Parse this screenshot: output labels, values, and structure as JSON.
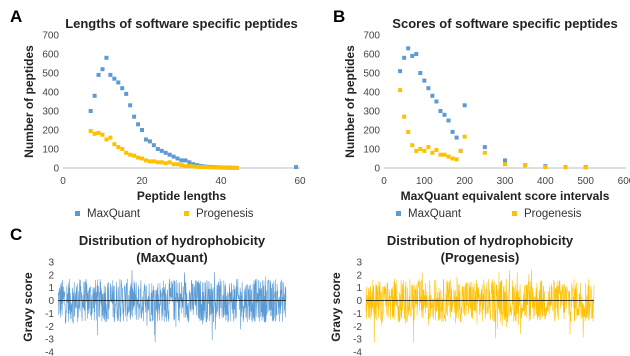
{
  "panels": {
    "A": "A",
    "B": "B",
    "C": "C"
  },
  "colors": {
    "maxquant": "#5b9bd5",
    "progenesis": "#ffc000",
    "axis": "#bfbfbf",
    "zero_line": "#222222"
  },
  "chart_data": [
    {
      "type": "scatter",
      "title": "Lengths of software specific peptides",
      "xlabel": "Peptide lengths",
      "ylabel": "Number of peptides",
      "xlim": [
        0,
        60
      ],
      "ylim": [
        0,
        700
      ],
      "xticks": [
        0,
        20,
        40,
        60
      ],
      "yticks": [
        0,
        100,
        200,
        300,
        400,
        500,
        600,
        700
      ],
      "legend": "bottom",
      "series": [
        {
          "name": "MaxQuant",
          "x": [
            7,
            8,
            9,
            10,
            11,
            12,
            13,
            14,
            15,
            16,
            17,
            18,
            19,
            20,
            21,
            22,
            23,
            24,
            25,
            26,
            27,
            28,
            29,
            30,
            31,
            32,
            33,
            34,
            35,
            36,
            37,
            38,
            39,
            40,
            41,
            42,
            43,
            44,
            59
          ],
          "y": [
            300,
            380,
            490,
            520,
            580,
            490,
            470,
            450,
            420,
            390,
            330,
            270,
            230,
            200,
            150,
            140,
            120,
            100,
            90,
            80,
            70,
            60,
            50,
            40,
            40,
            30,
            20,
            15,
            10,
            8,
            6,
            5,
            4,
            3,
            2,
            2,
            1,
            1,
            5
          ]
        },
        {
          "name": "Progenesis",
          "x": [
            7,
            8,
            9,
            10,
            11,
            12,
            13,
            14,
            15,
            16,
            17,
            18,
            19,
            20,
            21,
            22,
            23,
            24,
            25,
            26,
            27,
            28,
            29,
            30,
            31,
            32,
            33,
            34,
            35,
            36,
            37,
            38,
            39,
            40,
            41,
            42,
            43,
            44
          ],
          "y": [
            195,
            180,
            185,
            175,
            150,
            160,
            125,
            110,
            100,
            80,
            70,
            65,
            55,
            50,
            40,
            35,
            35,
            30,
            30,
            25,
            30,
            20,
            20,
            15,
            10,
            10,
            8,
            6,
            5,
            5,
            4,
            3,
            3,
            2,
            2,
            1,
            1,
            1
          ]
        }
      ]
    },
    {
      "type": "scatter",
      "title": "Scores of software specific peptides",
      "xlabel": "MaxQuant equivalent score intervals",
      "ylabel": "Number of peptides",
      "xlim": [
        0,
        600
      ],
      "ylim": [
        0,
        700
      ],
      "xticks": [
        0,
        100,
        200,
        300,
        400,
        500,
        600
      ],
      "yticks": [
        0,
        100,
        200,
        300,
        400,
        500,
        600,
        700
      ],
      "legend": "bottom",
      "series": [
        {
          "name": "MaxQuant",
          "x": [
            40,
            50,
            60,
            70,
            80,
            90,
            100,
            110,
            120,
            130,
            140,
            150,
            160,
            170,
            180,
            190,
            200,
            250,
            300,
            350,
            400,
            450,
            500
          ],
          "y": [
            510,
            580,
            630,
            590,
            600,
            500,
            460,
            420,
            380,
            350,
            300,
            280,
            250,
            190,
            160,
            90,
            330,
            110,
            40,
            15,
            10,
            5,
            5
          ]
        },
        {
          "name": "Progenesis",
          "x": [
            40,
            50,
            60,
            70,
            80,
            90,
            100,
            110,
            120,
            130,
            140,
            150,
            160,
            170,
            180,
            190,
            200,
            250,
            300,
            350,
            400,
            450,
            500
          ],
          "y": [
            410,
            270,
            190,
            120,
            90,
            100,
            90,
            110,
            80,
            95,
            70,
            70,
            60,
            50,
            45,
            90,
            165,
            80,
            20,
            15,
            5,
            4,
            3
          ]
        }
      ]
    },
    {
      "type": "area",
      "title_line1": "Distribution of hydrophobicity",
      "title_line2": "(MaxQuant)",
      "ylabel": "Gravy score",
      "ylim": [
        -4,
        3
      ],
      "yticks": [
        3,
        2,
        1,
        0,
        -1,
        -2,
        -3,
        -4
      ],
      "series": [
        {
          "name": "MaxQuant",
          "points": 900,
          "band_low": -1.7,
          "band_high": 1.7,
          "peak_min": -3.3,
          "peak_max": 2.6
        }
      ]
    },
    {
      "type": "area",
      "title_line1": "Distribution of hydrophobicity",
      "title_line2": "(Progenesis)",
      "ylabel": "Gravy score",
      "ylim": [
        -4,
        3
      ],
      "yticks": [
        3,
        2,
        1,
        0,
        -1,
        -2,
        -3,
        -4
      ],
      "series": [
        {
          "name": "Progenesis",
          "points": 800,
          "band_low": -1.7,
          "band_high": 1.7,
          "peak_min": -3.3,
          "peak_max": 2.6
        }
      ]
    }
  ]
}
